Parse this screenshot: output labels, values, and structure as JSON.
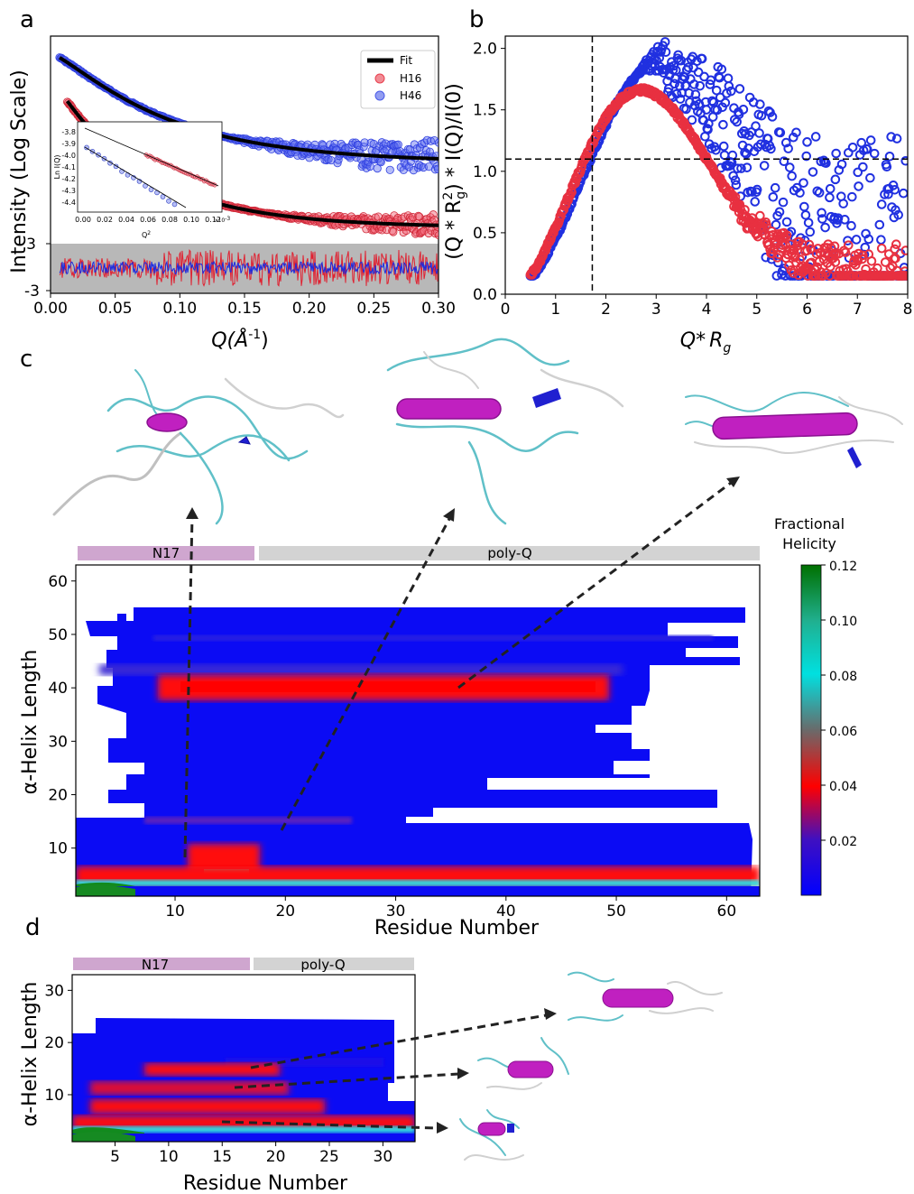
{
  "panels": {
    "a": "a",
    "b": "b",
    "c": "c",
    "d": "d"
  },
  "chart_data": [
    {
      "id": "panel-a",
      "type": "scatter",
      "xlabel_main": "Q(Å",
      "xlabel_sup": "-1",
      "xlabel_close": ")",
      "ylabel": "Intensity (Log Scale)",
      "xlim": [
        0,
        0.3
      ],
      "xticks": [
        "0.00",
        "0.05",
        "0.10",
        "0.15",
        "0.20",
        "0.25",
        "0.30"
      ],
      "residual_ticks": [
        "3",
        "-3"
      ],
      "legend": [
        "Fit",
        "H16",
        "H46"
      ],
      "colors": {
        "Fit": "#000000",
        "H16": "#e8404f",
        "H46": "#4a5be8"
      },
      "inset": {
        "ylabel": "Ln I(Q)",
        "xlabel": "Q",
        "xlabel_sup": "2",
        "xscale": "x10",
        "xscale_sup": "-3",
        "xticks": [
          "0.00",
          "0.02",
          "0.04",
          "0.06",
          "0.08",
          "0.10",
          "0.12"
        ],
        "yticks": [
          "-3.8",
          "-3.9",
          "-4.0",
          "-4.1",
          "-4.2",
          "-4.3",
          "-4.4"
        ]
      }
    },
    {
      "id": "panel-b",
      "type": "scatter",
      "xlabel_main": "Q",
      "xlabel_star": "*",
      "xlabel_rg": "R",
      "xlabel_sub": "g",
      "ylabel": "(Q * R",
      "ylabel_sup": "2",
      "ylabel_sub": "g",
      "ylabel_rest": ") * I(Q)/I(0)",
      "xlim": [
        0,
        8
      ],
      "ylim": [
        0,
        2.1
      ],
      "xticks": [
        "0",
        "1",
        "2",
        "3",
        "4",
        "5",
        "6",
        "7",
        "8"
      ],
      "yticks": [
        "0.0",
        "0.5",
        "1.0",
        "1.5",
        "2.0"
      ],
      "guides": {
        "x": 1.73,
        "y": 1.1
      },
      "series": [
        {
          "name": "H16",
          "color": "#e8404f",
          "peak_x": 2.8,
          "peak_y": 1.66
        },
        {
          "name": "H46",
          "color": "#3040e0",
          "peak_x": 3.3,
          "peak_y": 1.98
        }
      ]
    },
    {
      "id": "panel-c",
      "type": "heatmap",
      "xlabel": "Residue Number",
      "ylabel": "α-Helix Length",
      "xlim": [
        1,
        63
      ],
      "ylim": [
        1,
        63
      ],
      "xticks": [
        "10",
        "20",
        "30",
        "40",
        "50",
        "60"
      ],
      "yticks": [
        "10",
        "20",
        "30",
        "40",
        "50",
        "60"
      ],
      "segments": [
        {
          "label": "N17",
          "from": 1,
          "to": 17
        },
        {
          "label": "poly-Q",
          "from": 18,
          "to": 63
        }
      ],
      "colorbar": {
        "title_line1": "Fractional",
        "title_line2": "Helicity",
        "ticks": [
          "0.12",
          "0.10",
          "0.08",
          "0.06",
          "0.04",
          "0.02"
        ],
        "range": [
          0,
          0.12
        ]
      }
    },
    {
      "id": "panel-d",
      "type": "heatmap",
      "xlabel": "Residue Number",
      "ylabel": "α-Helix Length",
      "xlim": [
        1,
        33
      ],
      "ylim": [
        1,
        33
      ],
      "xticks": [
        "5",
        "10",
        "15",
        "20",
        "25",
        "30"
      ],
      "yticks": [
        "10",
        "20",
        "30"
      ],
      "segments": [
        {
          "label": "N17",
          "from": 1,
          "to": 17
        },
        {
          "label": "poly-Q",
          "from": 18,
          "to": 33
        }
      ]
    }
  ]
}
